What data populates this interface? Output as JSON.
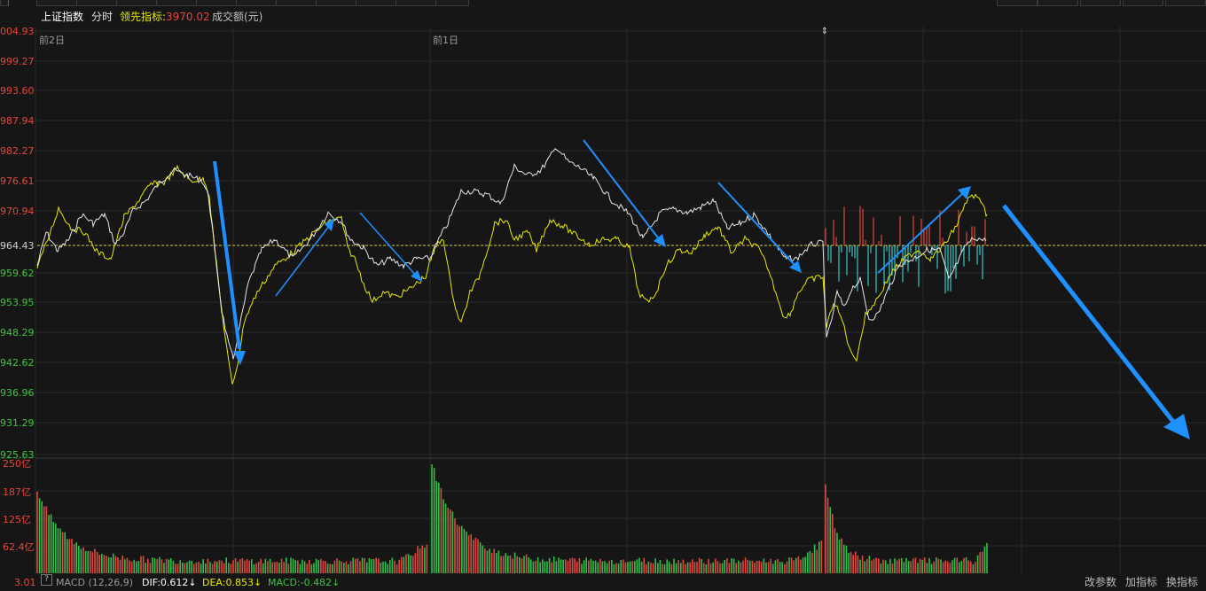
{
  "header": {
    "index_name": "上证指数",
    "mode": "分时",
    "lead_label": "领先指标:",
    "lead_value": "3970.02",
    "volume_label": "成交额(元)"
  },
  "price_axis": {
    "ticks": [
      "004.93",
      "999.27",
      "993.60",
      "987.94",
      "982.27",
      "976.61",
      "970.94",
      "964.43",
      "959.62",
      "953.95",
      "948.29",
      "942.62",
      "936.96",
      "931.29",
      "925.63"
    ],
    "ref_index": 7
  },
  "day_labels": [
    "前2日",
    "前1日"
  ],
  "volume_axis": {
    "ticks": [
      "250亿",
      "187亿",
      "125亿",
      "62.4亿"
    ],
    "bottom_label": "3.01"
  },
  "macd": {
    "help": "?",
    "title": "MACD (12,26,9)",
    "dif": "DIF:0.612↓",
    "dea": "DEA:0.853↓",
    "macd": "MACD:-0.482↓"
  },
  "buttons": {
    "change_params": "改参数",
    "add_indicator": "加指标",
    "switch_indicator": "换指标"
  },
  "colors": {
    "background": "#161616",
    "grid": "#2a2a2a",
    "white_line": "#e6e6e6",
    "yellow_line": "#e8e800",
    "up_red": "#e0483f",
    "down_green": "#2fbf4a",
    "cyan": "#36c7c7",
    "axis_red": "#e6463c",
    "axis_green": "#3cc83c",
    "arrow": "#1e90ff"
  }
}
